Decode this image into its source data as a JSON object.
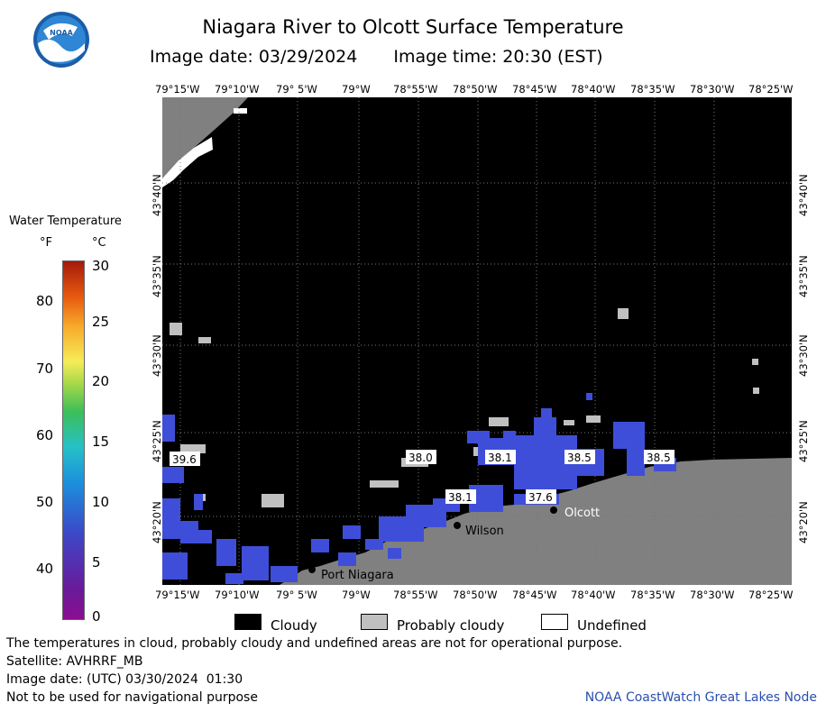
{
  "header": {
    "title": "Niagara River to Olcott Surface Temperature",
    "image_date": "Image date: 03/29/2024",
    "image_time": "Image time: 20:30 (EST)",
    "logo_text": "NOAA"
  },
  "map": {
    "lon_labels": [
      "79°15'W",
      "79°10'W",
      "79° 5'W",
      "79°W",
      "78°55'W",
      "78°50'W",
      "78°45'W",
      "78°40'W",
      "78°35'W",
      "78°30'W",
      "78°25'W"
    ],
    "lat_labels": [
      "43°40'N",
      "43°35'N",
      "43°30'N",
      "43°25'N",
      "43°20'N"
    ],
    "places": [
      {
        "name": "Port Niagara"
      },
      {
        "name": "Wilson"
      },
      {
        "name": "Olcott"
      }
    ],
    "temps": [
      {
        "value": "39.6"
      },
      {
        "value": "38.0"
      },
      {
        "value": "38.1"
      },
      {
        "value": "38.5"
      },
      {
        "value": "38.5"
      },
      {
        "value": "38.1"
      },
      {
        "value": "37.6"
      }
    ],
    "colors": {
      "cloudy": "#000000",
      "land": "#808080",
      "probably_cloudy": "#c0c0c0",
      "water_cold": "#3f4ed8",
      "undefined": "#ffffff"
    }
  },
  "legend": {
    "title": "Water Temperature",
    "unit_f": "°F",
    "unit_c": "°C",
    "f_ticks": [
      "80",
      "70",
      "60",
      "50",
      "40"
    ],
    "c_ticks": [
      "30",
      "25",
      "20",
      "15",
      "10",
      "5",
      "0"
    ],
    "items": [
      {
        "label": "Cloudy",
        "color": "#000000"
      },
      {
        "label": "Probably cloudy",
        "color": "#c0c0c0"
      },
      {
        "label": "Undefined",
        "color": "#ffffff"
      }
    ]
  },
  "footer": {
    "disclaimer": "The temperatures in cloud, probably cloudy and undefined areas are not for operational purpose.",
    "satellite": "Satellite: AVHRRF_MB",
    "utc_date": "Image date: (UTC) 03/30/2024  01:30",
    "nav_warning": "Not to be used for navigational purpose",
    "credit": "NOAA CoastWatch Great Lakes Node"
  }
}
